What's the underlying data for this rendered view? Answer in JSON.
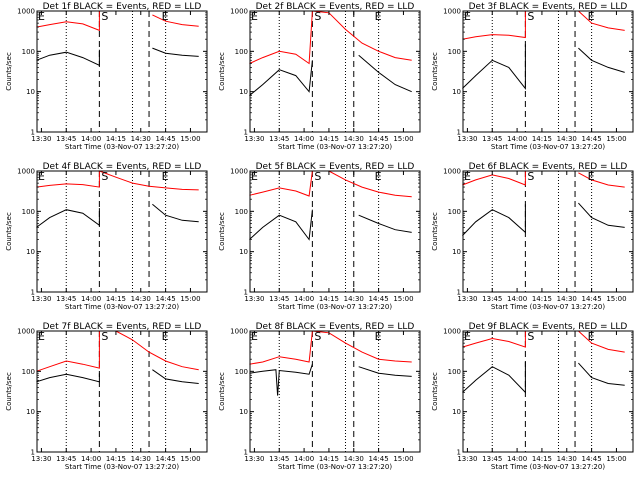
{
  "chart_data": [
    {
      "type": "line",
      "title": "Det 1f BLACK = Events, RED = LLD",
      "xlabel": "Start Time (03-Nov-07 13:27:20)",
      "ylabel": "Counts/sec",
      "xticks": [
        "13:30",
        "13:45",
        "14:00",
        "14:15",
        "14:30",
        "14:45",
        "15:00"
      ],
      "yticks": [
        "1",
        "10",
        "100",
        "1000"
      ],
      "ylim": [
        1,
        1000
      ],
      "yscale": "log",
      "xlim": [
        "13:27:20",
        "15:10:00"
      ],
      "markers": [
        "S",
        "E"
      ],
      "vlines_dotted": [
        "13:45",
        "14:25",
        "14:45"
      ],
      "vlines_dashed": [
        "14:05",
        "14:35"
      ],
      "series": [
        {
          "name": "LLD",
          "color": "#ff0000",
          "x": [
            "13:27",
            "13:35",
            "13:45",
            "13:55",
            "14:05",
            "14:05",
            "14:09",
            "14:35",
            "14:37",
            "14:45",
            "14:55",
            "15:05"
          ],
          "y": [
            400,
            460,
            540,
            480,
            330,
            1000,
            1000,
            null,
            800,
            560,
            460,
            420
          ]
        },
        {
          "name": "Events",
          "color": "#000000",
          "x": [
            "13:27",
            "13:35",
            "13:45",
            "13:55",
            "14:05",
            "14:05",
            "14:35",
            "14:37",
            "14:45",
            "14:55",
            "15:05"
          ],
          "y": [
            60,
            80,
            95,
            70,
            45,
            110,
            null,
            120,
            90,
            80,
            75
          ]
        }
      ]
    },
    {
      "type": "line",
      "title": "Det 2f BLACK = Events, RED = LLD",
      "xlabel": "Start Time (03-Nov-07 13:27:20)",
      "ylabel": "Counts/sec",
      "xticks": [
        "13:30",
        "13:45",
        "14:00",
        "14:15",
        "14:30",
        "14:45",
        "15:00"
      ],
      "yticks": [
        "1",
        "10",
        "100",
        "1000"
      ],
      "ylim": [
        1,
        1000
      ],
      "yscale": "log",
      "xlim": [
        "13:27:20",
        "15:10:00"
      ],
      "markers": [
        "S",
        "E"
      ],
      "vlines_dotted": [
        "13:45",
        "14:25",
        "14:45"
      ],
      "vlines_dashed": [
        "14:05",
        "14:30"
      ],
      "series": [
        {
          "name": "LLD",
          "color": "#ff0000",
          "x": [
            "13:27",
            "13:35",
            "13:45",
            "13:55",
            "14:03",
            "14:05",
            "14:15",
            "14:25",
            "14:35",
            "14:45",
            "14:55",
            "15:05"
          ],
          "y": [
            50,
            70,
            100,
            85,
            50,
            1000,
            900,
            350,
            160,
            100,
            70,
            60
          ]
        },
        {
          "name": "Events",
          "color": "#000000",
          "x": [
            "13:27",
            "13:35",
            "13:45",
            "13:55",
            "14:03",
            "14:05",
            "14:30",
            "14:33",
            "14:45",
            "14:55",
            "15:05"
          ],
          "y": [
            8,
            15,
            35,
            25,
            10,
            60,
            null,
            80,
            30,
            15,
            10
          ]
        }
      ]
    },
    {
      "type": "line",
      "title": "Det 3f BLACK = Events, RED = LLD",
      "xlabel": "Start Time (03-Nov-07 13:27:20)",
      "ylabel": "Counts/sec",
      "xticks": [
        "13:30",
        "13:45",
        "14:00",
        "14:15",
        "14:30",
        "14:45",
        "15:00"
      ],
      "yticks": [
        "1",
        "10",
        "100",
        "1000"
      ],
      "ylim": [
        1,
        1000
      ],
      "yscale": "log",
      "xlim": [
        "13:27:20",
        "15:10:00"
      ],
      "markers": [
        "S",
        "E"
      ],
      "vlines_dotted": [
        "13:45",
        "14:25",
        "14:45"
      ],
      "vlines_dashed": [
        "14:05",
        "14:35"
      ],
      "series": [
        {
          "name": "LLD",
          "color": "#ff0000",
          "x": [
            "13:27",
            "13:35",
            "13:45",
            "13:55",
            "14:05",
            "14:05",
            "14:35",
            "14:37",
            "14:45",
            "14:55",
            "15:05"
          ],
          "y": [
            200,
            230,
            260,
            250,
            220,
            1000,
            null,
            1000,
            500,
            380,
            330
          ]
        },
        {
          "name": "Events",
          "color": "#000000",
          "x": [
            "13:27",
            "13:35",
            "13:45",
            "13:55",
            "14:05",
            "14:05",
            "14:35",
            "14:37",
            "14:45",
            "14:55",
            "15:05"
          ],
          "y": [
            12,
            25,
            60,
            40,
            12,
            150,
            null,
            120,
            60,
            40,
            30
          ]
        }
      ]
    },
    {
      "type": "line",
      "title": "Det 4f BLACK = Events, RED = LLD",
      "xlabel": "Start Time (03-Nov-07 13:27:20)",
      "ylabel": "Counts/sec",
      "xticks": [
        "13:30",
        "13:45",
        "14:00",
        "14:15",
        "14:30",
        "14:45",
        "15:00"
      ],
      "yticks": [
        "1",
        "10",
        "100",
        "1000"
      ],
      "ylim": [
        1,
        1000
      ],
      "yscale": "log",
      "xlim": [
        "13:27:20",
        "15:10:00"
      ],
      "markers": [
        "S",
        "E"
      ],
      "vlines_dotted": [
        "13:45",
        "14:25",
        "14:45"
      ],
      "vlines_dashed": [
        "14:05",
        "14:35"
      ],
      "series": [
        {
          "name": "LLD",
          "color": "#ff0000",
          "x": [
            "13:27",
            "13:35",
            "13:45",
            "13:55",
            "14:05",
            "14:05",
            "14:15",
            "14:25",
            "14:35",
            "14:45",
            "14:55",
            "15:05"
          ],
          "y": [
            400,
            440,
            480,
            460,
            400,
            1000,
            700,
            500,
            420,
            380,
            350,
            340
          ]
        },
        {
          "name": "Events",
          "color": "#000000",
          "x": [
            "13:27",
            "13:35",
            "13:45",
            "13:55",
            "14:05",
            "14:05",
            "14:35",
            "14:37",
            "14:45",
            "14:55",
            "15:05"
          ],
          "y": [
            40,
            70,
            110,
            90,
            45,
            120,
            null,
            150,
            80,
            60,
            55
          ]
        }
      ]
    },
    {
      "type": "line",
      "title": "Det 5f BLACK = Events, RED = LLD",
      "xlabel": "Start Time (03-Nov-07 13:27:20)",
      "ylabel": "Counts/sec",
      "xticks": [
        "13:30",
        "13:45",
        "14:00",
        "14:15",
        "14:30",
        "14:45",
        "15:00"
      ],
      "yticks": [
        "1",
        "10",
        "100",
        "1000"
      ],
      "ylim": [
        1,
        1000
      ],
      "yscale": "log",
      "xlim": [
        "13:27:20",
        "15:10:00"
      ],
      "markers": [
        "S",
        "E"
      ],
      "vlines_dotted": [
        "13:45",
        "14:25",
        "14:45"
      ],
      "vlines_dashed": [
        "14:05",
        "14:30"
      ],
      "series": [
        {
          "name": "LLD",
          "color": "#ff0000",
          "x": [
            "13:27",
            "13:35",
            "13:45",
            "13:55",
            "14:03",
            "14:05",
            "14:15",
            "14:25",
            "14:35",
            "14:45",
            "14:55",
            "15:05"
          ],
          "y": [
            250,
            300,
            380,
            320,
            240,
            1000,
            1000,
            600,
            400,
            300,
            250,
            230
          ]
        },
        {
          "name": "Events",
          "color": "#000000",
          "x": [
            "13:27",
            "13:35",
            "13:45",
            "13:55",
            "14:03",
            "14:05",
            "14:30",
            "14:33",
            "14:45",
            "14:55",
            "15:05"
          ],
          "y": [
            20,
            40,
            80,
            55,
            20,
            110,
            null,
            80,
            50,
            35,
            30
          ]
        }
      ]
    },
    {
      "type": "line",
      "title": "Det 6f BLACK = Events, RED = LLD",
      "xlabel": "Start Time (03-Nov-07 13:27:20)",
      "ylabel": "Counts/sec",
      "xticks": [
        "13:30",
        "13:45",
        "14:00",
        "14:15",
        "14:30",
        "14:45",
        "15:00"
      ],
      "yticks": [
        "1",
        "10",
        "100",
        "1000"
      ],
      "ylim": [
        1,
        1000
      ],
      "yscale": "log",
      "xlim": [
        "13:27:20",
        "15:10:00"
      ],
      "markers": [
        "S",
        "E"
      ],
      "vlines_dotted": [
        "13:45",
        "14:25",
        "14:45"
      ],
      "vlines_dashed": [
        "14:05",
        "14:35"
      ],
      "series": [
        {
          "name": "LLD",
          "color": "#ff0000",
          "x": [
            "13:27",
            "13:35",
            "13:45",
            "13:55",
            "14:05",
            "14:05",
            "14:35",
            "14:37",
            "14:45",
            "14:55",
            "15:05"
          ],
          "y": [
            450,
            600,
            800,
            650,
            450,
            1000,
            null,
            900,
            600,
            450,
            400
          ]
        },
        {
          "name": "Events",
          "color": "#000000",
          "x": [
            "13:27",
            "13:35",
            "13:45",
            "13:55",
            "14:05",
            "14:05",
            "14:35",
            "14:37",
            "14:45",
            "14:55",
            "15:05"
          ],
          "y": [
            25,
            55,
            110,
            70,
            30,
            150,
            null,
            160,
            70,
            45,
            40
          ]
        }
      ]
    },
    {
      "type": "line",
      "title": "Det 7f BLACK = Events, RED = LLD",
      "xlabel": "Start Time (03-Nov-07 13:27:20)",
      "ylabel": "Counts/sec",
      "xticks": [
        "13:30",
        "13:45",
        "14:00",
        "14:15",
        "14:30",
        "14:45",
        "15:00"
      ],
      "yticks": [
        "1",
        "10",
        "100",
        "1000"
      ],
      "ylim": [
        1,
        1000
      ],
      "yscale": "log",
      "xlim": [
        "13:27:20",
        "15:10:00"
      ],
      "markers": [
        "S",
        "E"
      ],
      "vlines_dotted": [
        "13:45",
        "14:25",
        "14:45"
      ],
      "vlines_dashed": [
        "14:05",
        "14:35"
      ],
      "series": [
        {
          "name": "LLD",
          "color": "#ff0000",
          "x": [
            "13:27",
            "13:35",
            "13:45",
            "13:55",
            "14:05",
            "14:05",
            "14:15",
            "14:25",
            "14:35",
            "14:45",
            "14:55",
            "15:05"
          ],
          "y": [
            100,
            130,
            180,
            150,
            120,
            1000,
            1000,
            600,
            300,
            180,
            130,
            110
          ]
        },
        {
          "name": "Events",
          "color": "#000000",
          "x": [
            "13:27",
            "13:35",
            "13:45",
            "13:55",
            "14:05",
            "14:05",
            "14:35",
            "14:37",
            "14:45",
            "14:55",
            "15:05"
          ],
          "y": [
            55,
            70,
            85,
            70,
            55,
            90,
            null,
            110,
            65,
            55,
            50
          ]
        }
      ]
    },
    {
      "type": "line",
      "title": "Det 8f BLACK = Events, RED = LLD",
      "xlabel": "Start Time (03-Nov-07 13:27:20)",
      "ylabel": "Counts/sec",
      "xticks": [
        "13:30",
        "13:45",
        "14:00",
        "14:15",
        "14:30",
        "14:45",
        "15:00"
      ],
      "yticks": [
        "1",
        "10",
        "100",
        "1000"
      ],
      "ylim": [
        1,
        1000
      ],
      "yscale": "log",
      "xlim": [
        "13:27:20",
        "15:10:00"
      ],
      "markers": [
        "S",
        "E"
      ],
      "vlines_dotted": [
        "13:45",
        "14:25",
        "14:45"
      ],
      "vlines_dashed": [
        "14:05",
        "14:30"
      ],
      "series": [
        {
          "name": "LLD",
          "color": "#ff0000",
          "x": [
            "13:27",
            "13:35",
            "13:45",
            "13:55",
            "14:03",
            "14:05",
            "14:15",
            "14:25",
            "14:35",
            "14:45",
            "14:55",
            "15:05"
          ],
          "y": [
            150,
            170,
            230,
            200,
            170,
            1000,
            900,
            500,
            300,
            200,
            180,
            170
          ]
        },
        {
          "name": "Events",
          "color": "#000000",
          "x": [
            "13:27",
            "13:35",
            "13:43",
            "13:44",
            "13:45",
            "13:55",
            "14:03",
            "14:05",
            "14:30",
            "14:33",
            "14:45",
            "14:55",
            "15:05"
          ],
          "y": [
            90,
            100,
            110,
            25,
            105,
            95,
            85,
            150,
            null,
            130,
            90,
            80,
            75
          ]
        }
      ]
    },
    {
      "type": "line",
      "title": "Det 9f BLACK = Events, RED = LLD",
      "xlabel": "Start Time (03-Nov-07 13:27:20)",
      "ylabel": "Counts/sec",
      "xticks": [
        "13:30",
        "13:45",
        "14:00",
        "14:15",
        "14:30",
        "14:45",
        "15:00"
      ],
      "yticks": [
        "1",
        "10",
        "100",
        "1000"
      ],
      "ylim": [
        1,
        1000
      ],
      "yscale": "log",
      "xlim": [
        "13:27:20",
        "15:10:00"
      ],
      "markers": [
        "S",
        "E"
      ],
      "vlines_dotted": [
        "13:45",
        "14:25",
        "14:45"
      ],
      "vlines_dashed": [
        "14:05",
        "14:35"
      ],
      "series": [
        {
          "name": "LLD",
          "color": "#ff0000",
          "x": [
            "13:27",
            "13:35",
            "13:45",
            "13:55",
            "14:05",
            "14:05",
            "14:35",
            "14:37",
            "14:45",
            "14:55",
            "15:05"
          ],
          "y": [
            400,
            500,
            650,
            550,
            400,
            1000,
            null,
            1000,
            500,
            350,
            300
          ]
        },
        {
          "name": "Events",
          "color": "#000000",
          "x": [
            "13:27",
            "13:35",
            "13:45",
            "13:55",
            "14:05",
            "14:05",
            "14:35",
            "14:37",
            "14:45",
            "14:55",
            "15:05"
          ],
          "y": [
            30,
            60,
            130,
            80,
            30,
            170,
            null,
            160,
            70,
            50,
            45
          ]
        }
      ]
    }
  ]
}
